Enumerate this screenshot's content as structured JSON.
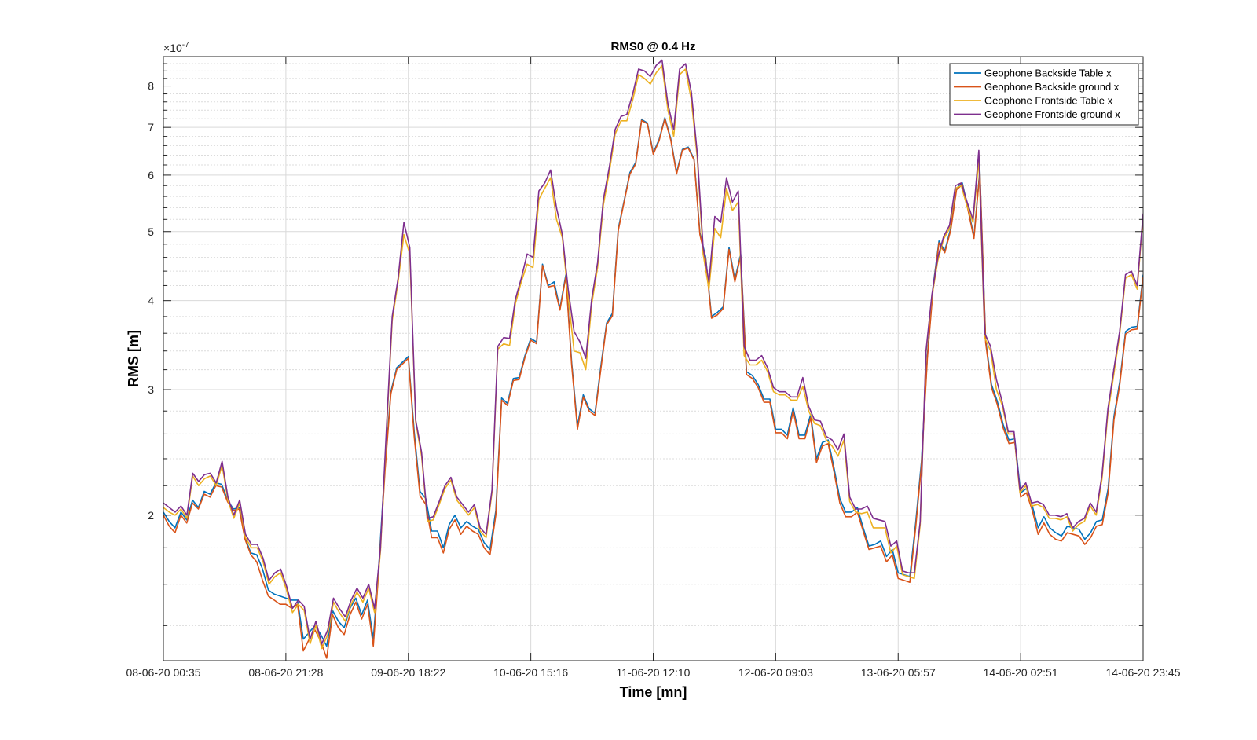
{
  "chart_data": {
    "type": "line",
    "title": "RMS0 @ 0.4 Hz",
    "xlabel": "Time [mn]",
    "ylabel": "RMS [m]",
    "y_scale": "log",
    "y_exponent_label": "×10",
    "y_exponent": "-7",
    "y_multiplier": 1e-07,
    "ylim": [
      1.25,
      8.8
    ],
    "y_ticks": [
      2,
      3,
      4,
      5,
      6,
      7,
      8
    ],
    "y_tick_labels": [
      "2",
      "3",
      "4",
      "5",
      "6",
      "7",
      "8"
    ],
    "y_minor_ticks": [
      1.4,
      1.6,
      1.8,
      2.2,
      2.4,
      2.6,
      2.8,
      3.2,
      3.4,
      3.6,
      3.8,
      4.2,
      4.4,
      4.6,
      4.8,
      5.2,
      5.4,
      5.6,
      5.8,
      6.2,
      6.4,
      6.6,
      6.8,
      7.2,
      7.4,
      7.6,
      7.8,
      8.2,
      8.4,
      8.6
    ],
    "xlim": [
      0,
      160
    ],
    "x_ticks": [
      0,
      20,
      40,
      60,
      80,
      100,
      120,
      140,
      160
    ],
    "x_tick_labels": [
      "08-06-20 00:35",
      "08-06-20 21:28",
      "09-06-20 18:22",
      "10-06-20 15:16",
      "11-06-20 12:10",
      "12-06-20 09:03",
      "13-06-20 05:57",
      "14-06-20 02:51",
      "14-06-20 23:45"
    ],
    "grid": true,
    "legend_position": "top-right",
    "x_index_note": "",
    "series": [
      {
        "name": "Geophone Backside Table x",
        "color": "#0072BD",
        "values": [
          2.02,
          1.96,
          1.92,
          2.02,
          1.97,
          2.1,
          2.05,
          2.16,
          2.14,
          2.22,
          2.21,
          2.1,
          2.04,
          2.05,
          1.86,
          1.77,
          1.76,
          1.68,
          1.57,
          1.55,
          1.54,
          1.53,
          1.52,
          1.52,
          1.34,
          1.37,
          1.4,
          1.36,
          1.31,
          1.47,
          1.42,
          1.39,
          1.48,
          1.53,
          1.45,
          1.52,
          1.34,
          1.73,
          2.35,
          2.98,
          3.22,
          3.28,
          3.34,
          2.62,
          2.16,
          2.11,
          1.9,
          1.9,
          1.8,
          1.94,
          2.0,
          1.92,
          1.96,
          1.93,
          1.91,
          1.83,
          1.79,
          2.03,
          2.92,
          2.87,
          3.11,
          3.12,
          3.35,
          3.54,
          3.5,
          4.5,
          4.2,
          4.25,
          3.9,
          4.35,
          3.28,
          2.67,
          2.95,
          2.82,
          2.78,
          3.23,
          3.72,
          3.84,
          5.05,
          5.52,
          6.05,
          6.25,
          7.18,
          7.1,
          6.45,
          6.73,
          7.22,
          6.75,
          6.05,
          6.52,
          6.57,
          6.32,
          4.98,
          4.6,
          3.8,
          3.85,
          3.92,
          4.75,
          4.28,
          4.65,
          3.18,
          3.14,
          3.05,
          2.91,
          2.91,
          2.64,
          2.64,
          2.59,
          2.83,
          2.59,
          2.59,
          2.77,
          2.4,
          2.53,
          2.55,
          2.33,
          2.11,
          2.02,
          2.02,
          2.05,
          1.92,
          1.81,
          1.82,
          1.84,
          1.75,
          1.79,
          1.66,
          1.65,
          1.64,
          1.95,
          2.38,
          3.35,
          4.2,
          4.85,
          4.7,
          5.05,
          5.75,
          5.85,
          5.38,
          4.92,
          6.1,
          3.52,
          3.05,
          2.89,
          2.68,
          2.55,
          2.56,
          2.15,
          2.18,
          2.06,
          1.92,
          1.99,
          1.92,
          1.89,
          1.87,
          1.93,
          1.92,
          1.91,
          1.85,
          1.89,
          1.96,
          1.97,
          2.18,
          2.75,
          3.08,
          3.62,
          3.67,
          3.68,
          4.35
        ]
      },
      {
        "name": "Geophone Backside ground x",
        "color": "#D95319",
        "values": [
          2.0,
          1.93,
          1.89,
          2.0,
          1.95,
          2.08,
          2.04,
          2.14,
          2.12,
          2.2,
          2.19,
          2.09,
          2.03,
          2.04,
          1.85,
          1.76,
          1.72,
          1.62,
          1.54,
          1.52,
          1.5,
          1.5,
          1.48,
          1.5,
          1.29,
          1.34,
          1.38,
          1.33,
          1.26,
          1.45,
          1.39,
          1.36,
          1.45,
          1.51,
          1.43,
          1.5,
          1.31,
          1.7,
          2.31,
          2.96,
          3.2,
          3.26,
          3.32,
          2.58,
          2.13,
          2.07,
          1.86,
          1.86,
          1.77,
          1.91,
          1.97,
          1.88,
          1.93,
          1.9,
          1.88,
          1.8,
          1.76,
          2.0,
          2.9,
          2.85,
          3.09,
          3.1,
          3.33,
          3.52,
          3.48,
          4.48,
          4.18,
          4.2,
          3.88,
          4.32,
          3.25,
          2.64,
          2.93,
          2.8,
          2.76,
          3.2,
          3.7,
          3.81,
          5.02,
          5.5,
          6.02,
          6.22,
          7.16,
          7.08,
          6.42,
          6.7,
          7.2,
          6.72,
          6.02,
          6.5,
          6.55,
          6.3,
          4.95,
          4.57,
          3.78,
          3.82,
          3.9,
          4.72,
          4.25,
          4.62,
          3.15,
          3.11,
          3.02,
          2.88,
          2.88,
          2.61,
          2.61,
          2.56,
          2.8,
          2.56,
          2.56,
          2.74,
          2.37,
          2.5,
          2.52,
          2.3,
          2.08,
          1.99,
          1.99,
          2.02,
          1.9,
          1.79,
          1.8,
          1.81,
          1.72,
          1.76,
          1.63,
          1.62,
          1.61,
          1.92,
          2.35,
          3.32,
          4.17,
          4.82,
          4.67,
          5.02,
          5.72,
          5.82,
          5.35,
          4.89,
          6.07,
          3.49,
          3.02,
          2.86,
          2.65,
          2.52,
          2.53,
          2.12,
          2.15,
          2.03,
          1.88,
          1.95,
          1.88,
          1.85,
          1.84,
          1.89,
          1.88,
          1.87,
          1.82,
          1.86,
          1.93,
          1.94,
          2.15,
          2.72,
          3.05,
          3.59,
          3.64,
          3.65,
          4.32
        ]
      },
      {
        "name": "Geophone Frontside Table x",
        "color": "#EDB120",
        "values": [
          2.05,
          2.02,
          2.0,
          2.04,
          1.98,
          2.27,
          2.2,
          2.25,
          2.27,
          2.2,
          2.35,
          2.1,
          1.98,
          2.08,
          1.86,
          1.8,
          1.8,
          1.72,
          1.6,
          1.64,
          1.66,
          1.57,
          1.46,
          1.5,
          1.47,
          1.32,
          1.4,
          1.3,
          1.36,
          1.51,
          1.46,
          1.42,
          1.5,
          1.56,
          1.51,
          1.58,
          1.46,
          1.78,
          2.58,
          3.75,
          4.25,
          4.95,
          4.65,
          2.7,
          2.42,
          1.96,
          1.97,
          2.07,
          2.18,
          2.24,
          2.1,
          2.05,
          2.0,
          2.05,
          1.9,
          1.86,
          2.15,
          3.42,
          3.48,
          3.46,
          3.96,
          4.25,
          4.5,
          4.45,
          5.55,
          5.75,
          5.95,
          5.2,
          4.9,
          4.05,
          3.4,
          3.38,
          3.2,
          3.95,
          4.45,
          5.45,
          6.05,
          6.85,
          7.15,
          7.15,
          7.65,
          8.3,
          8.2,
          8.05,
          8.35,
          8.55,
          7.4,
          6.8,
          8.3,
          8.45,
          7.65,
          6.35,
          4.65,
          4.15,
          5.05,
          4.9,
          5.75,
          5.35,
          5.5,
          3.35,
          3.25,
          3.25,
          3.3,
          3.18,
          2.98,
          2.95,
          2.95,
          2.9,
          2.9,
          3.03,
          2.8,
          2.69,
          2.67,
          2.55,
          2.5,
          2.42,
          2.55,
          2.09,
          2.02,
          2.01,
          2.02,
          1.92,
          1.92,
          1.92,
          1.77,
          1.81,
          1.65,
          1.64,
          1.63,
          1.94,
          3.38,
          4.05,
          4.55,
          4.88,
          5.05,
          5.75,
          5.8,
          5.42,
          5.15,
          6.3,
          3.55,
          3.4,
          3.0,
          2.85,
          2.6,
          2.6,
          2.15,
          2.2,
          2.06,
          2.07,
          2.05,
          1.98,
          1.98,
          1.97,
          1.99,
          1.9,
          1.94,
          1.96,
          2.06,
          2.0,
          2.25,
          2.78,
          3.15,
          3.58,
          4.3,
          4.35,
          4.15,
          5.25
        ]
      },
      {
        "name": "Geophone Frontside ground x",
        "color": "#7E2F8E",
        "values": [
          2.08,
          2.05,
          2.02,
          2.06,
          2.0,
          2.29,
          2.23,
          2.28,
          2.29,
          2.22,
          2.38,
          2.12,
          2.0,
          2.1,
          1.88,
          1.82,
          1.82,
          1.74,
          1.62,
          1.66,
          1.68,
          1.59,
          1.48,
          1.52,
          1.49,
          1.34,
          1.42,
          1.32,
          1.38,
          1.53,
          1.48,
          1.44,
          1.52,
          1.58,
          1.53,
          1.6,
          1.48,
          1.8,
          2.62,
          3.8,
          4.3,
          5.15,
          4.75,
          2.72,
          2.45,
          1.98,
          1.99,
          2.09,
          2.2,
          2.26,
          2.12,
          2.07,
          2.02,
          2.07,
          1.92,
          1.88,
          2.17,
          3.45,
          3.55,
          3.54,
          4.02,
          4.3,
          4.65,
          4.6,
          5.7,
          5.85,
          6.1,
          5.4,
          4.95,
          4.15,
          3.62,
          3.5,
          3.32,
          4.02,
          4.52,
          5.55,
          6.15,
          6.95,
          7.25,
          7.3,
          7.8,
          8.45,
          8.4,
          8.25,
          8.55,
          8.7,
          7.55,
          6.95,
          8.45,
          8.6,
          7.85,
          6.45,
          4.75,
          4.25,
          5.25,
          5.15,
          5.95,
          5.5,
          5.7,
          3.45,
          3.3,
          3.3,
          3.35,
          3.22,
          3.02,
          2.98,
          2.98,
          2.93,
          2.93,
          3.12,
          2.84,
          2.72,
          2.71,
          2.58,
          2.55,
          2.47,
          2.6,
          2.12,
          2.04,
          2.04,
          2.06,
          1.98,
          1.97,
          1.96,
          1.81,
          1.84,
          1.67,
          1.66,
          1.66,
          1.96,
          3.4,
          4.08,
          4.6,
          4.92,
          5.1,
          5.8,
          5.85,
          5.5,
          5.2,
          6.5,
          3.6,
          3.45,
          3.1,
          2.88,
          2.62,
          2.62,
          2.17,
          2.22,
          2.08,
          2.09,
          2.07,
          2.0,
          2.0,
          1.99,
          2.01,
          1.92,
          1.96,
          1.98,
          2.08,
          2.02,
          2.28,
          2.82,
          3.2,
          3.62,
          4.35,
          4.4,
          4.2,
          5.3
        ]
      }
    ]
  }
}
